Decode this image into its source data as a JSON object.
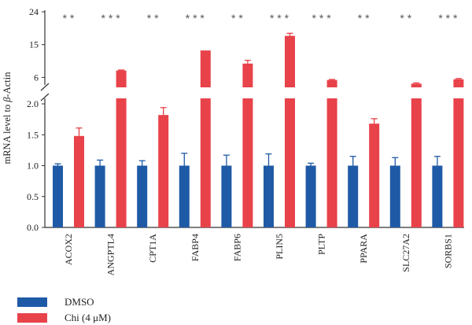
{
  "chart_data": {
    "type": "bar",
    "title": "",
    "ylabel_prefix": "mRNA level to ",
    "ylabel_italic": "β",
    "ylabel_suffix": "-Actin",
    "xlabel": "",
    "broken_axis": true,
    "lower_ylim": [
      0,
      2.1
    ],
    "upper_ylim": [
      3.5,
      24
    ],
    "lower_ticks": [
      "0.0",
      "0.5",
      "1.0",
      "1.5",
      "2.0"
    ],
    "upper_ticks": [
      "6",
      "15",
      "24"
    ],
    "categories": [
      "ACOX2",
      "ANGPTL4",
      "CPT1A",
      "FABP4",
      "FABP6",
      "PLIN5",
      "PLTP",
      "PPARA",
      "SLC27A2",
      "SORBS1"
    ],
    "significance": [
      "* *",
      "* * *",
      "* *",
      "* * *",
      "* *",
      "* * *",
      "* * *",
      "* *",
      "* *",
      "* * *"
    ],
    "series": [
      {
        "name": "DMSO",
        "color": "#1f5aa6",
        "values": [
          1.0,
          1.0,
          1.0,
          1.0,
          1.0,
          1.0,
          1.0,
          1.0,
          1.0,
          1.0
        ],
        "errors": [
          0.03,
          0.09,
          0.08,
          0.2,
          0.17,
          0.19,
          0.04,
          0.15,
          0.13,
          0.15
        ]
      },
      {
        "name": "Chi (4 μM)",
        "color": "#e8424a",
        "values": [
          1.48,
          7.9,
          1.82,
          13.4,
          9.8,
          17.4,
          5.3,
          1.68,
          4.3,
          5.5
        ],
        "errors": [
          0.13,
          0.15,
          0.12,
          0.0,
          0.9,
          0.7,
          0.15,
          0.08,
          0.2,
          0.2
        ]
      }
    ],
    "legend_position": "bottom-left",
    "grid": false
  }
}
